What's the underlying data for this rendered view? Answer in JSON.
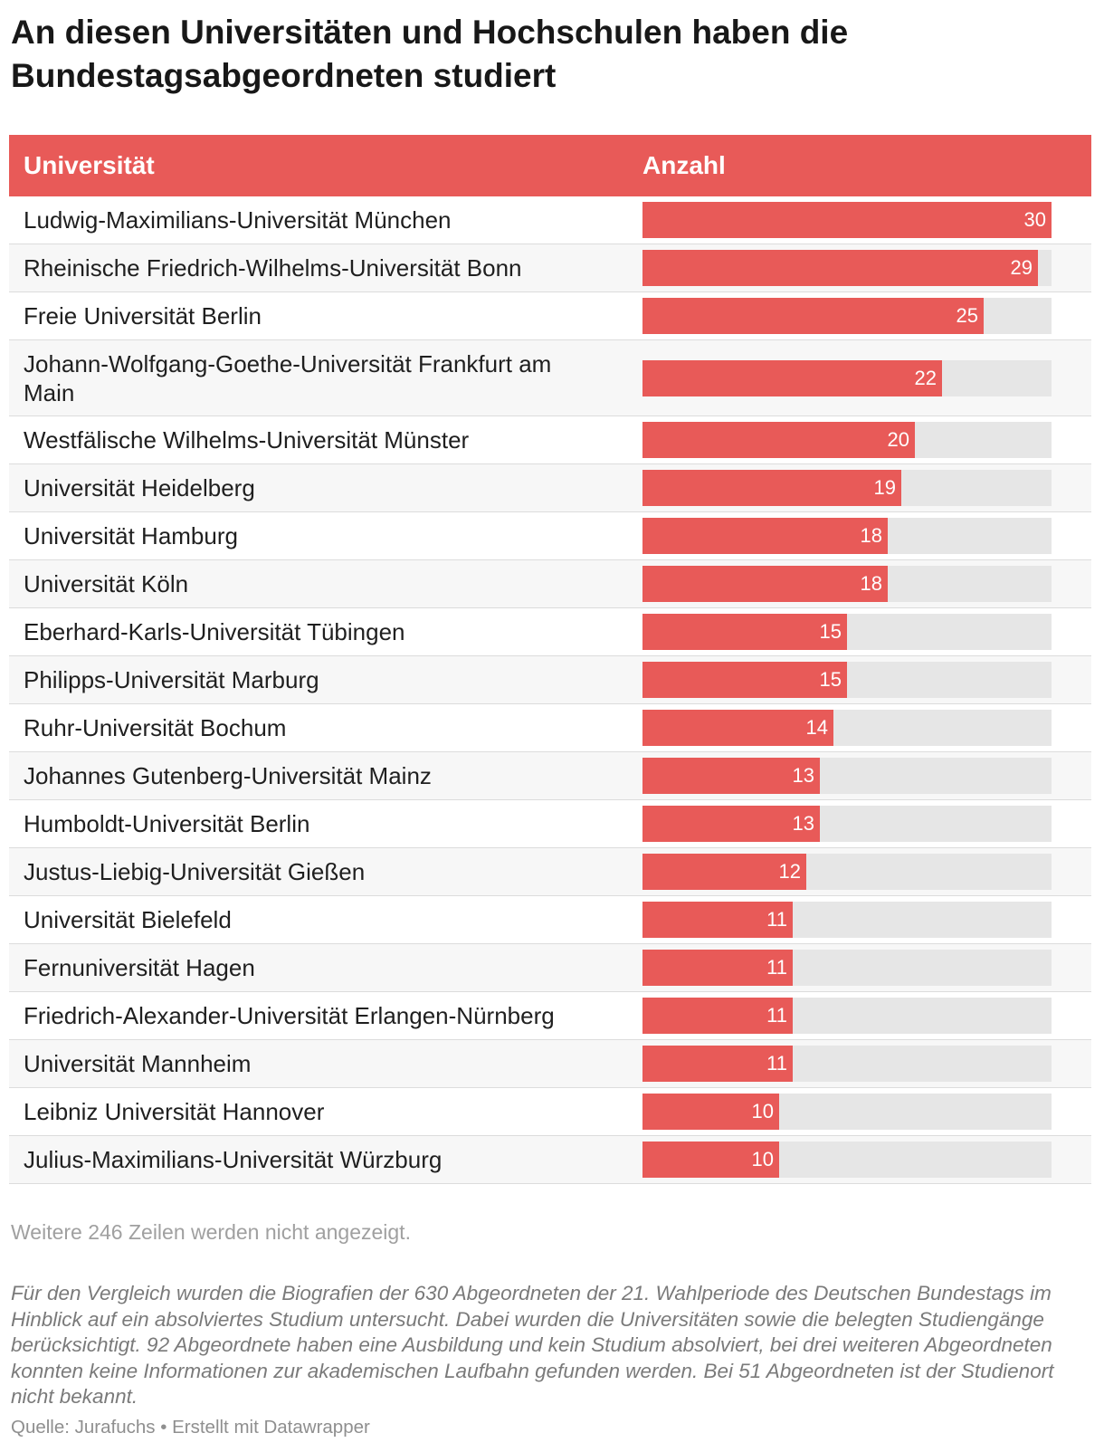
{
  "title": "An diesen Universitäten und Hochschulen haben die Bundestagsabgeordneten studiert",
  "colors": {
    "accent": "#e85a58",
    "track": "#e6e6e6",
    "header_text": "#ffffff"
  },
  "chart_data": {
    "type": "table",
    "columns": [
      "Universität",
      "Anzahl"
    ],
    "max": 30,
    "rows": [
      {
        "name": "Ludwig-Maximilians-Universität München",
        "value": 30
      },
      {
        "name": "Rheinische Friedrich-Wilhelms-Universität Bonn",
        "value": 29
      },
      {
        "name": "Freie Universität Berlin",
        "value": 25
      },
      {
        "name": "Johann-Wolfgang-Goethe-Universität Frankfurt am Main",
        "value": 22
      },
      {
        "name": "Westfälische Wilhelms-Universität Münster",
        "value": 20
      },
      {
        "name": "Universität Heidelberg",
        "value": 19
      },
      {
        "name": "Universität Hamburg",
        "value": 18
      },
      {
        "name": "Universität Köln",
        "value": 18
      },
      {
        "name": "Eberhard-Karls-Universität Tübingen",
        "value": 15
      },
      {
        "name": "Philipps-Universität Marburg",
        "value": 15
      },
      {
        "name": "Ruhr-Universität Bochum",
        "value": 14
      },
      {
        "name": "Johannes Gutenberg-Universität Mainz",
        "value": 13
      },
      {
        "name": "Humboldt-Universität Berlin",
        "value": 13
      },
      {
        "name": "Justus-Liebig-Universität Gießen",
        "value": 12
      },
      {
        "name": "Universität Bielefeld",
        "value": 11
      },
      {
        "name": "Fernuniversität Hagen",
        "value": 11
      },
      {
        "name": "Friedrich-Alexander-Universität Erlangen-Nürnberg",
        "value": 11
      },
      {
        "name": "Universität Mannheim",
        "value": 11
      },
      {
        "name": "Leibniz Universität Hannover",
        "value": 10
      },
      {
        "name": "Julius-Maximilians-Universität Würzburg",
        "value": 10
      }
    ]
  },
  "more_rows": "Weitere 246 Zeilen werden nicht angezeigt.",
  "note": "Für den Vergleich wurden die Biografien der 630 Abgeordneten der 21. Wahlperiode des Deutschen Bundestags im Hinblick auf ein absolviertes Studium untersucht. Dabei wurden die Universitäten sowie die belegten Studiengänge berücksichtigt. 92 Abgeordnete haben eine Ausbildung und kein Studium absolviert, bei drei weiteren Abgeordneten konnten keine Informationen zur akademischen Laufbahn gefunden werden. Bei 51 Abgeordneten ist der Studienort nicht bekannt.",
  "source": "Quelle: Jurafuchs • Erstellt mit Datawrapper"
}
